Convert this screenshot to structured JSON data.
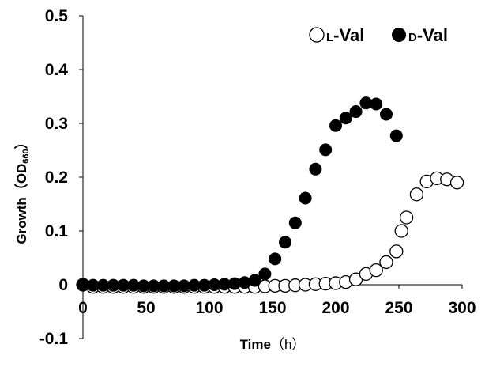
{
  "chart_data": {
    "type": "scatter",
    "title": "",
    "xlabel": "Time",
    "xlabel_unit": "（h）",
    "ylabel": "Growth",
    "ylabel_unit_open": "（OD",
    "ylabel_unit_sub": "660",
    "ylabel_unit_close": "）",
    "xlim": [
      0,
      300
    ],
    "ylim": [
      -0.1,
      0.5
    ],
    "xticks": [
      0,
      50,
      100,
      150,
      200,
      250,
      300
    ],
    "yticks": [
      -0.1,
      0,
      0.1,
      0.2,
      0.3,
      0.4,
      0.5
    ],
    "xtick_labels": [
      "0",
      "50",
      "100",
      "150",
      "200",
      "250",
      "300"
    ],
    "ytick_labels": [
      "-0.1",
      "0",
      "0.1",
      "0.2",
      "0.3",
      "0.4",
      "0.5"
    ],
    "grid": false,
    "legend_position": "top-right",
    "series": [
      {
        "name": "L-Val",
        "name_prefix": "L",
        "name_suffix": "-Val",
        "marker": "open-circle",
        "x": [
          0,
          8,
          16,
          24,
          32,
          40,
          48,
          56,
          64,
          72,
          80,
          88,
          96,
          104,
          112,
          120,
          128,
          136,
          144,
          152,
          160,
          168,
          176,
          184,
          192,
          200,
          208,
          216,
          224,
          232,
          240,
          248,
          252,
          256,
          264,
          272,
          280,
          288,
          296
        ],
        "y": [
          0,
          -0.004,
          -0.004,
          -0.004,
          -0.004,
          -0.004,
          -0.004,
          -0.004,
          -0.004,
          -0.004,
          -0.004,
          -0.004,
          -0.004,
          -0.004,
          -0.004,
          -0.004,
          -0.004,
          -0.004,
          -0.003,
          -0.002,
          -0.002,
          -0.001,
          0,
          0.001,
          0.002,
          0.003,
          0.005,
          0.01,
          0.02,
          0.027,
          0.042,
          0.062,
          0.1,
          0.125,
          0.168,
          0.192,
          0.198,
          0.196,
          0.19
        ]
      },
      {
        "name": "D-Val",
        "name_prefix": "D",
        "name_suffix": "-Val",
        "marker": "filled-circle",
        "x": [
          0,
          8,
          16,
          24,
          32,
          40,
          48,
          56,
          64,
          72,
          80,
          88,
          96,
          104,
          112,
          120,
          128,
          136,
          144,
          152,
          160,
          168,
          176,
          184,
          192,
          200,
          208,
          216,
          224,
          232,
          240,
          248
        ],
        "y": [
          0,
          -0.001,
          -0.001,
          -0.001,
          -0.001,
          -0.001,
          -0.002,
          -0.002,
          -0.002,
          -0.002,
          -0.002,
          -0.001,
          -0.001,
          0,
          0.001,
          0.002,
          0.004,
          0.008,
          0.02,
          0.048,
          0.079,
          0.115,
          0.161,
          0.215,
          0.251,
          0.296,
          0.31,
          0.322,
          0.338,
          0.336,
          0.317,
          0.277
        ]
      }
    ]
  }
}
